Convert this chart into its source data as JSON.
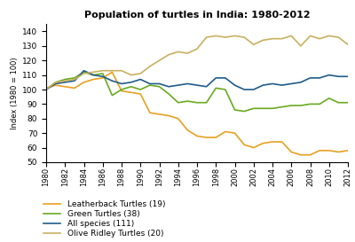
{
  "title": "Population of turtles in India: 1980-2012",
  "ylabel": "Index (1980 = 100)",
  "years": [
    1980,
    1981,
    1982,
    1983,
    1984,
    1985,
    1986,
    1987,
    1988,
    1989,
    1990,
    1991,
    1992,
    1993,
    1994,
    1995,
    1996,
    1997,
    1998,
    1999,
    2000,
    2001,
    2002,
    2003,
    2004,
    2005,
    2006,
    2007,
    2008,
    2009,
    2010,
    2011,
    2012
  ],
  "leatherback": [
    101,
    103,
    102,
    101,
    105,
    107,
    108,
    112,
    99,
    98,
    97,
    84,
    83,
    82,
    80,
    72,
    68,
    67,
    67,
    71,
    70,
    62,
    60,
    63,
    64,
    64,
    57,
    55,
    55,
    58,
    58,
    57,
    58
  ],
  "green": [
    100,
    105,
    107,
    108,
    112,
    110,
    111,
    96,
    100,
    102,
    100,
    103,
    102,
    97,
    91,
    92,
    91,
    91,
    101,
    100,
    86,
    85,
    87,
    87,
    87,
    88,
    89,
    89,
    90,
    90,
    94,
    91,
    91
  ],
  "all_species": [
    100,
    104,
    105,
    106,
    113,
    110,
    109,
    106,
    104,
    105,
    107,
    104,
    104,
    102,
    103,
    104,
    103,
    102,
    108,
    108,
    103,
    100,
    100,
    103,
    104,
    103,
    104,
    105,
    108,
    108,
    110,
    109,
    109
  ],
  "olive_ridley": [
    100,
    105,
    106,
    107,
    111,
    112,
    113,
    113,
    113,
    110,
    111,
    116,
    120,
    124,
    126,
    125,
    128,
    136,
    137,
    136,
    137,
    136,
    131,
    134,
    135,
    135,
    137,
    130,
    137,
    135,
    137,
    136,
    131
  ],
  "leatherback_color": "#E8A020",
  "green_color": "#6AAA20",
  "all_species_color": "#1F5C8B",
  "olive_ridley_color": "#C8B060",
  "legend_labels": [
    "Leatherback Turtles (19)",
    "Green Turtles (38)",
    "All species (111)",
    "Olive Ridley Turtles (20)"
  ],
  "ylim": [
    50,
    145
  ],
  "yticks": [
    50,
    60,
    70,
    80,
    90,
    100,
    110,
    120,
    130,
    140
  ],
  "xtick_step": 2,
  "background_color": "#ffffff"
}
